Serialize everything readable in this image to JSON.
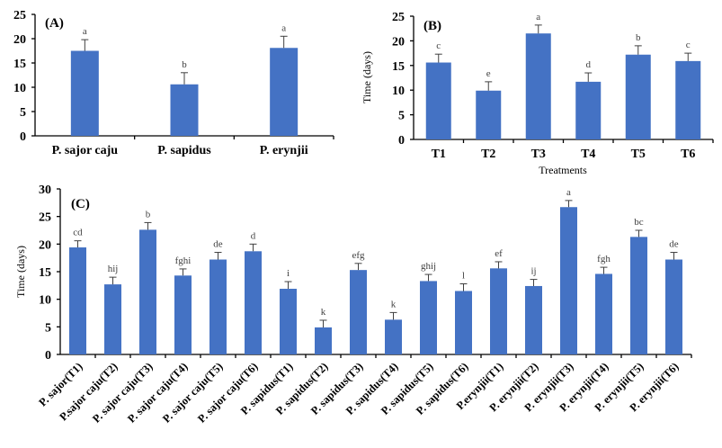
{
  "colors": {
    "bar": "#4472C4",
    "axis": "#000000",
    "error": "#404040",
    "sig": "#404040"
  },
  "chart_data": [
    {
      "type": "bar",
      "panel": "(A)",
      "title": "",
      "xlabel": "",
      "ylabel": "",
      "ylim": [
        0,
        25
      ],
      "yticks": [
        0,
        5,
        10,
        15,
        20,
        25
      ],
      "grid": false,
      "categories": [
        "P. sajor caju",
        "P. sapidus",
        "P. erynjii"
      ],
      "values": [
        17.5,
        10.6,
        18.1
      ],
      "errors": [
        2.3,
        2.4,
        2.4
      ],
      "significance": [
        "a",
        "b",
        "a"
      ]
    },
    {
      "type": "bar",
      "panel": "(B)",
      "title": "",
      "xlabel": "Treatments",
      "ylabel": "Time (days)",
      "ylim": [
        0,
        25
      ],
      "yticks": [
        0,
        5,
        10,
        15,
        20,
        25
      ],
      "grid": false,
      "categories": [
        "T1",
        "T2",
        "T3",
        "T4",
        "T5",
        "T6"
      ],
      "values": [
        15.6,
        9.9,
        21.5,
        11.7,
        17.2,
        15.9
      ],
      "errors": [
        1.7,
        1.8,
        1.7,
        1.8,
        1.8,
        1.6
      ],
      "significance": [
        "c",
        "e",
        "a",
        "d",
        "b",
        "c"
      ]
    },
    {
      "type": "bar",
      "panel": "(C)",
      "title": "",
      "xlabel": "",
      "ylabel": "Time (days)",
      "ylim": [
        0,
        30
      ],
      "yticks": [
        0,
        5,
        10,
        15,
        20,
        25,
        30
      ],
      "grid": false,
      "categories": [
        "P. sajor(T1)",
        "P.sajor caju(T2)",
        "P. sajor caju(T3)",
        "P. sajor caju(T4)",
        "P. sajor caju(T5)",
        "P. sajor caju(T6)",
        "P. sapidus(T1)",
        "P. sapidus(T2)",
        "P. sapidus(T3)",
        "P. sapidus(T4)",
        "P. sapidus(T5)",
        "P. sapidus(T6)",
        "P.erynjii(T1)",
        "P. erynjii(T2)",
        "P. erynjii(T3)",
        "P. erynjii(T4)",
        "P. erynjii(T5)",
        "P. erynjii(T6)"
      ],
      "values": [
        19.4,
        12.7,
        22.6,
        14.3,
        17.2,
        18.7,
        11.9,
        4.9,
        15.3,
        6.3,
        13.3,
        11.5,
        15.6,
        12.4,
        26.7,
        14.6,
        21.3,
        17.2
      ],
      "errors": [
        1.2,
        1.3,
        1.3,
        1.2,
        1.3,
        1.3,
        1.3,
        1.3,
        1.2,
        1.3,
        1.2,
        1.3,
        1.2,
        1.2,
        1.2,
        1.2,
        1.2,
        1.3
      ],
      "significance": [
        "cd",
        "hij",
        "b",
        "fghi",
        "de",
        "d",
        "i",
        "k",
        "efg",
        "k",
        "ghij",
        "l",
        "ef",
        "ij",
        "a",
        "fgh",
        "bc",
        "de"
      ]
    }
  ]
}
